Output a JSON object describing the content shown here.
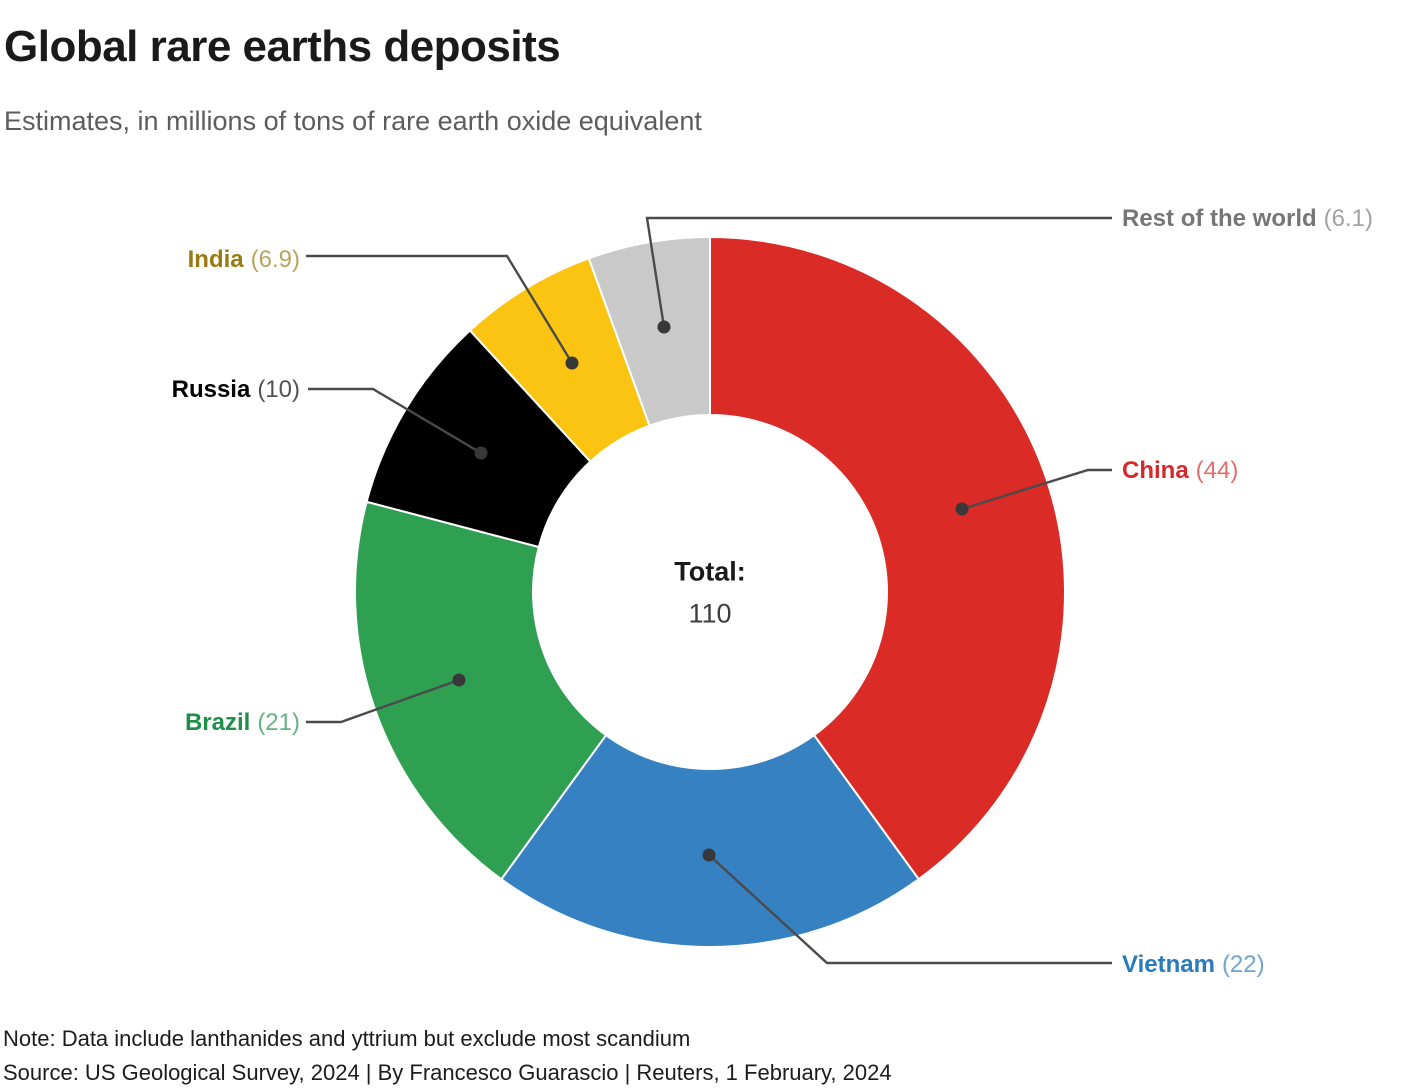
{
  "header": {
    "title": "Global rare earths deposits",
    "subtitle": "Estimates, in millions of tons of rare earth oxide equivalent"
  },
  "chart_data": {
    "type": "pie",
    "subtype": "donut",
    "title": "Global rare earths deposits",
    "unit_note": "Estimates, in millions of tons of rare earth oxide equivalent",
    "direction": "clockwise",
    "start_angle_deg": 0,
    "legend_position": "callout-labels",
    "total": 110,
    "center": {
      "label": "Total:",
      "value": "110"
    },
    "slices": [
      {
        "name": "China",
        "value": 44,
        "value_display": "(44)",
        "color": "#db2b26",
        "label_color": "#d7282a"
      },
      {
        "name": "Vietnam",
        "value": 22,
        "value_display": "(22)",
        "color": "#3581c1",
        "label_color": "#2b7bbb"
      },
      {
        "name": "Brazil",
        "value": 21,
        "value_display": "(21)",
        "color": "#2fa052",
        "label_color": "#1e8e49"
      },
      {
        "name": "Russia",
        "value": 10,
        "value_display": "(10)",
        "color": "#000000",
        "label_color": "#000000"
      },
      {
        "name": "India",
        "value": 6.9,
        "value_display": "(6.9)",
        "color": "#fcc412",
        "label_color": "#9a7a10"
      },
      {
        "name": "Rest of the world",
        "value": 6.1,
        "value_display": "(6.1)",
        "color": "#c9c9c9",
        "label_color": "#767676"
      }
    ]
  },
  "footer": {
    "note": "Note: Data include lanthanides and yttrium but exclude most scandium",
    "source": "Source: US Geological Survey, 2024 | By Francesco Guarascio | Reuters, 1 February, 2024"
  }
}
